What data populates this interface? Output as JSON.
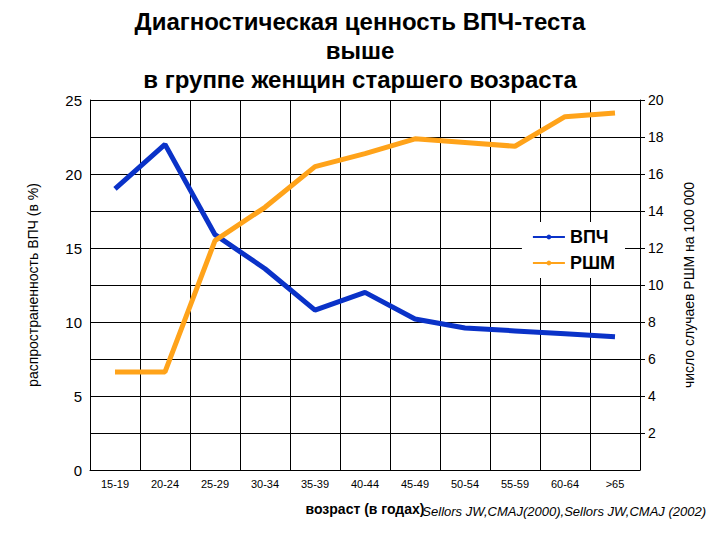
{
  "chart_data": {
    "type": "line",
    "title": "Диагностическая ценность ВПЧ-теста\nвыше\nв группе женщин старшего возраста",
    "x_label": "возраст (в годах)",
    "y_label": "распространенность ВПЧ (в %)",
    "y2_label": "число случаев РШМ на 100 000",
    "annotations": [
      "Sellors JW,CMAJ(2000),Sellors JW,CMAJ (2002)"
    ],
    "categories": [
      "15-19",
      "20-24",
      "25-29",
      "30-34",
      "35-39",
      "40-44",
      "45-49",
      "50-54",
      "55-59",
      "60-64",
      ">65"
    ],
    "series": [
      {
        "name": "ВПЧ",
        "color": "#0a32c8",
        "axis": "y",
        "values": [
          19.0,
          22.0,
          15.9,
          13.6,
          10.8,
          12.0,
          10.2,
          9.6,
          9.4,
          9.2,
          9.0
        ]
      },
      {
        "name": "РШМ",
        "color": "#ffa31a",
        "axis": "y2",
        "values": [
          5.3,
          5.3,
          12.4,
          14.2,
          16.4,
          17.1,
          17.9,
          17.7,
          17.5,
          19.1,
          19.3
        ]
      }
    ],
    "ylim": [
      0,
      25
    ],
    "yticks": [
      0,
      5,
      10,
      15,
      20,
      25
    ],
    "y2lim": [
      0,
      20
    ],
    "y2ticks": [
      2,
      4,
      6,
      8,
      10,
      12,
      14,
      16,
      18,
      20
    ],
    "grid": true,
    "legend": "right"
  }
}
